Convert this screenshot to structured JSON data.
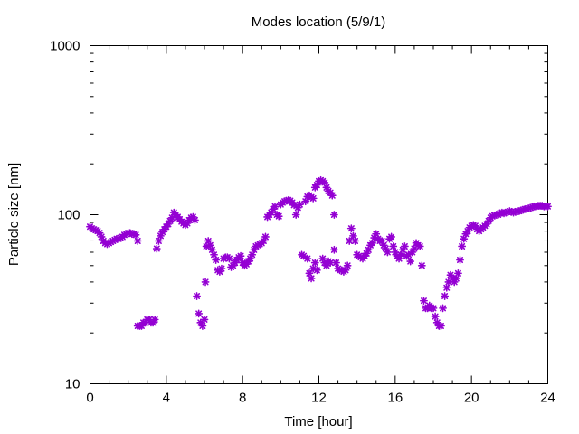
{
  "chart_data": {
    "type": "scatter",
    "title": "Modes location (5/9/1)",
    "xlabel": "Time [hour]",
    "ylabel": "Particle size [nm]",
    "xlim": [
      0,
      24
    ],
    "ylim": [
      10,
      1000
    ],
    "yscale": "log",
    "grid": false,
    "marker_color": "#9400d3",
    "marker": "asterisk",
    "x_ticks": [
      0,
      4,
      8,
      12,
      16,
      20,
      24
    ],
    "x_tick_labels": [
      "0",
      "4",
      "8",
      "12",
      "16",
      "20",
      "24"
    ],
    "y_ticks": [
      10,
      100,
      1000
    ],
    "y_tick_labels": [
      "10",
      "100",
      "1000"
    ],
    "points": [
      [
        0.0,
        85
      ],
      [
        0.1,
        83
      ],
      [
        0.2,
        82
      ],
      [
        0.3,
        81
      ],
      [
        0.4,
        80
      ],
      [
        0.5,
        78
      ],
      [
        0.6,
        74
      ],
      [
        0.7,
        70
      ],
      [
        0.8,
        68
      ],
      [
        0.9,
        67
      ],
      [
        1.0,
        68
      ],
      [
        1.1,
        69
      ],
      [
        1.2,
        70
      ],
      [
        1.3,
        71
      ],
      [
        1.4,
        72
      ],
      [
        1.5,
        72
      ],
      [
        1.6,
        73
      ],
      [
        1.7,
        74
      ],
      [
        1.8,
        76
      ],
      [
        1.9,
        77
      ],
      [
        2.0,
        78
      ],
      [
        2.1,
        78
      ],
      [
        2.2,
        77
      ],
      [
        2.3,
        77
      ],
      [
        2.4,
        76
      ],
      [
        2.5,
        70
      ],
      [
        2.5,
        22
      ],
      [
        2.6,
        22
      ],
      [
        2.7,
        22
      ],
      [
        2.8,
        23
      ],
      [
        2.9,
        23
      ],
      [
        3.0,
        24
      ],
      [
        3.1,
        24
      ],
      [
        3.2,
        23
      ],
      [
        3.3,
        23
      ],
      [
        3.4,
        24
      ],
      [
        3.5,
        63
      ],
      [
        3.6,
        70
      ],
      [
        3.7,
        75
      ],
      [
        3.8,
        79
      ],
      [
        3.9,
        82
      ],
      [
        4.0,
        85
      ],
      [
        4.1,
        88
      ],
      [
        4.2,
        92
      ],
      [
        4.3,
        96
      ],
      [
        4.4,
        103
      ],
      [
        4.5,
        100
      ],
      [
        4.6,
        97
      ],
      [
        4.7,
        94
      ],
      [
        4.8,
        91
      ],
      [
        4.9,
        89
      ],
      [
        5.0,
        87
      ],
      [
        5.1,
        89
      ],
      [
        5.2,
        93
      ],
      [
        5.3,
        96
      ],
      [
        5.4,
        97
      ],
      [
        5.5,
        93
      ],
      [
        5.6,
        33
      ],
      [
        5.7,
        26
      ],
      [
        5.8,
        23
      ],
      [
        5.9,
        22
      ],
      [
        6.0,
        24
      ],
      [
        6.05,
        40
      ],
      [
        6.1,
        65
      ],
      [
        6.2,
        70
      ],
      [
        6.3,
        66
      ],
      [
        6.4,
        62
      ],
      [
        6.5,
        58
      ],
      [
        6.6,
        54
      ],
      [
        6.7,
        47
      ],
      [
        6.8,
        46
      ],
      [
        6.9,
        48
      ],
      [
        7.0,
        55
      ],
      [
        7.1,
        56
      ],
      [
        7.2,
        56
      ],
      [
        7.3,
        55
      ],
      [
        7.4,
        49
      ],
      [
        7.5,
        50
      ],
      [
        7.6,
        52
      ],
      [
        7.7,
        54
      ],
      [
        7.8,
        56
      ],
      [
        7.9,
        57
      ],
      [
        8.0,
        52
      ],
      [
        8.1,
        50
      ],
      [
        8.2,
        51
      ],
      [
        8.3,
        53
      ],
      [
        8.4,
        55
      ],
      [
        8.5,
        58
      ],
      [
        8.6,
        62
      ],
      [
        8.7,
        65
      ],
      [
        8.8,
        66
      ],
      [
        8.9,
        67
      ],
      [
        9.0,
        68
      ],
      [
        9.1,
        70
      ],
      [
        9.2,
        74
      ],
      [
        9.3,
        97
      ],
      [
        9.4,
        100
      ],
      [
        9.5,
        103
      ],
      [
        9.6,
        108
      ],
      [
        9.7,
        112
      ],
      [
        9.8,
        100
      ],
      [
        9.9,
        98
      ],
      [
        10.0,
        115
      ],
      [
        10.1,
        118
      ],
      [
        10.2,
        120
      ],
      [
        10.3,
        121
      ],
      [
        10.4,
        122
      ],
      [
        10.5,
        121
      ],
      [
        10.6,
        118
      ],
      [
        10.7,
        114
      ],
      [
        10.8,
        100
      ],
      [
        10.9,
        110
      ],
      [
        11.0,
        115
      ],
      [
        11.1,
        58
      ],
      [
        11.2,
        57
      ],
      [
        11.3,
        120
      ],
      [
        11.4,
        128
      ],
      [
        11.5,
        130
      ],
      [
        11.6,
        127
      ],
      [
        11.7,
        125
      ],
      [
        11.4,
        55
      ],
      [
        11.5,
        45
      ],
      [
        11.6,
        42
      ],
      [
        11.7,
        48
      ],
      [
        11.8,
        52
      ],
      [
        11.9,
        47
      ],
      [
        11.8,
        145
      ],
      [
        11.9,
        150
      ],
      [
        12.0,
        158
      ],
      [
        12.1,
        160
      ],
      [
        12.2,
        158
      ],
      [
        12.3,
        155
      ],
      [
        12.4,
        145
      ],
      [
        12.5,
        138
      ],
      [
        12.6,
        135
      ],
      [
        12.7,
        130
      ],
      [
        12.2,
        55
      ],
      [
        12.3,
        52
      ],
      [
        12.4,
        50
      ],
      [
        12.5,
        53
      ],
      [
        12.6,
        52
      ],
      [
        12.8,
        100
      ],
      [
        12.8,
        62
      ],
      [
        12.9,
        52
      ],
      [
        13.0,
        48
      ],
      [
        13.1,
        47
      ],
      [
        13.2,
        47
      ],
      [
        13.3,
        46
      ],
      [
        13.4,
        47
      ],
      [
        13.5,
        50
      ],
      [
        13.6,
        70
      ],
      [
        13.7,
        83
      ],
      [
        13.8,
        75
      ],
      [
        13.9,
        70
      ],
      [
        14.0,
        58
      ],
      [
        14.1,
        57
      ],
      [
        14.2,
        56
      ],
      [
        14.3,
        55
      ],
      [
        14.4,
        57
      ],
      [
        14.5,
        59
      ],
      [
        14.6,
        62
      ],
      [
        14.7,
        66
      ],
      [
        14.8,
        68
      ],
      [
        14.9,
        73
      ],
      [
        15.0,
        77
      ],
      [
        15.1,
        72
      ],
      [
        15.2,
        70
      ],
      [
        15.3,
        70
      ],
      [
        15.4,
        66
      ],
      [
        15.5,
        63
      ],
      [
        15.6,
        60
      ],
      [
        15.7,
        72
      ],
      [
        15.8,
        74
      ],
      [
        15.9,
        65
      ],
      [
        16.0,
        60
      ],
      [
        16.1,
        57
      ],
      [
        16.2,
        55
      ],
      [
        16.3,
        58
      ],
      [
        16.4,
        62
      ],
      [
        16.5,
        65
      ],
      [
        16.6,
        57
      ],
      [
        16.7,
        58
      ],
      [
        16.8,
        53
      ],
      [
        16.9,
        60
      ],
      [
        17.0,
        63
      ],
      [
        17.1,
        68
      ],
      [
        17.2,
        66
      ],
      [
        17.3,
        65
      ],
      [
        17.4,
        50
      ],
      [
        17.5,
        31
      ],
      [
        17.6,
        28
      ],
      [
        17.7,
        28
      ],
      [
        17.8,
        29
      ],
      [
        17.9,
        28
      ],
      [
        18.0,
        28
      ],
      [
        18.1,
        25
      ],
      [
        18.2,
        23
      ],
      [
        18.3,
        22
      ],
      [
        18.4,
        22
      ],
      [
        18.5,
        28
      ],
      [
        18.6,
        33
      ],
      [
        18.7,
        37
      ],
      [
        18.8,
        40
      ],
      [
        18.9,
        44
      ],
      [
        19.0,
        42
      ],
      [
        19.1,
        40
      ],
      [
        19.2,
        42
      ],
      [
        19.3,
        45
      ],
      [
        19.4,
        54
      ],
      [
        19.5,
        65
      ],
      [
        19.6,
        72
      ],
      [
        19.7,
        77
      ],
      [
        19.8,
        80
      ],
      [
        19.9,
        84
      ],
      [
        20.0,
        86
      ],
      [
        20.1,
        87
      ],
      [
        20.2,
        86
      ],
      [
        20.3,
        82
      ],
      [
        20.4,
        80
      ],
      [
        20.5,
        82
      ],
      [
        20.6,
        84
      ],
      [
        20.7,
        86
      ],
      [
        20.8,
        88
      ],
      [
        20.9,
        92
      ],
      [
        21.0,
        96
      ],
      [
        21.1,
        98
      ],
      [
        21.2,
        99
      ],
      [
        21.3,
        100
      ],
      [
        21.4,
        100
      ],
      [
        21.5,
        102
      ],
      [
        21.6,
        103
      ],
      [
        21.7,
        102
      ],
      [
        21.8,
        103
      ],
      [
        21.9,
        104
      ],
      [
        22.0,
        105
      ],
      [
        22.1,
        104
      ],
      [
        22.2,
        103
      ],
      [
        22.3,
        104
      ],
      [
        22.4,
        105
      ],
      [
        22.5,
        105
      ],
      [
        22.6,
        106
      ],
      [
        22.7,
        107
      ],
      [
        22.8,
        108
      ],
      [
        22.9,
        108
      ],
      [
        23.0,
        109
      ],
      [
        23.1,
        110
      ],
      [
        23.2,
        111
      ],
      [
        23.3,
        112
      ],
      [
        23.4,
        112
      ],
      [
        23.5,
        113
      ],
      [
        23.6,
        113
      ],
      [
        23.7,
        113
      ],
      [
        23.8,
        112
      ],
      [
        23.9,
        112
      ],
      [
        24.0,
        112
      ]
    ]
  }
}
